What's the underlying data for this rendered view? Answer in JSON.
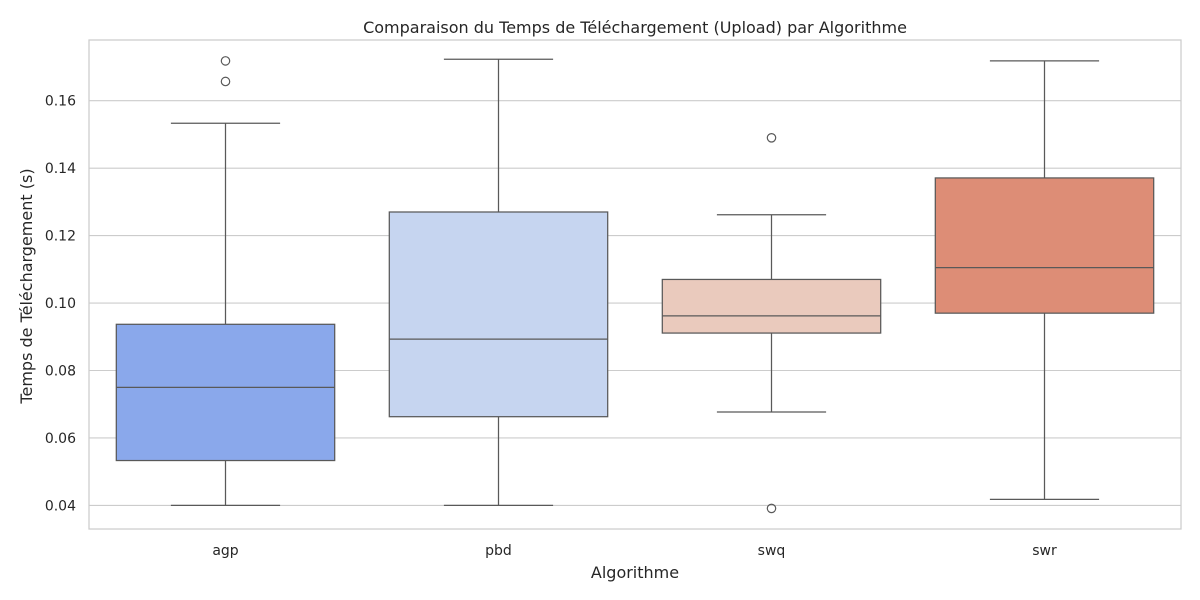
{
  "chart_data": {
    "type": "box",
    "title": "Comparaison du Temps de Téléchargement (Upload) par Algorithme",
    "xlabel": "Algorithme",
    "ylabel": "Temps de Téléchargement (s)",
    "ylim": [
      0.033,
      0.178
    ],
    "yticks": [
      0.04,
      0.06,
      0.08,
      0.1,
      0.12,
      0.14,
      0.16
    ],
    "ytick_labels": [
      "0.04",
      "0.06",
      "0.08",
      "0.10",
      "0.12",
      "0.14",
      "0.16"
    ],
    "grid": true,
    "categories": [
      "agp",
      "pbd",
      "swq",
      "swr"
    ],
    "boxes": [
      {
        "name": "agp",
        "whisker_low": 0.04,
        "q1": 0.0533,
        "median": 0.075,
        "q3": 0.0937,
        "whisker_high": 0.1533,
        "outliers": [
          0.1657,
          0.1718
        ],
        "color": "#8aa8eb"
      },
      {
        "name": "pbd",
        "whisker_low": 0.04,
        "q1": 0.0663,
        "median": 0.0893,
        "q3": 0.127,
        "whisker_high": 0.1723,
        "outliers": [],
        "color": "#c6d5f0"
      },
      {
        "name": "swq",
        "whisker_low": 0.0677,
        "q1": 0.0911,
        "median": 0.0962,
        "q3": 0.107,
        "whisker_high": 0.1262,
        "outliers": [
          0.149,
          0.0391
        ],
        "color": "#eacabd"
      },
      {
        "name": "swr",
        "whisker_low": 0.0418,
        "q1": 0.097,
        "median": 0.1105,
        "q3": 0.1371,
        "whisker_high": 0.1718,
        "outliers": [],
        "color": "#dd8d76"
      }
    ]
  }
}
